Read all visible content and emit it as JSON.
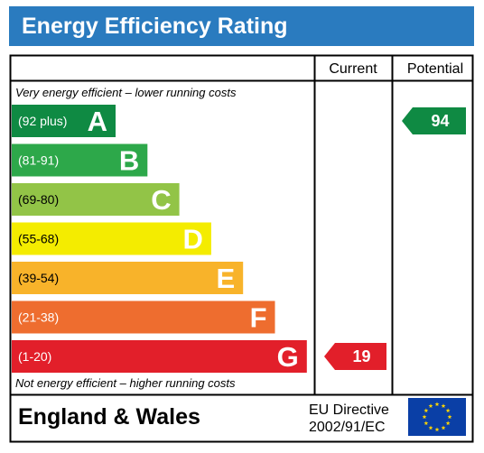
{
  "title": "Energy Efficiency Rating",
  "colors": {
    "title_bar": "#2a7bbf",
    "border": "#000000",
    "eu_flag": "#0a3fa6",
    "eu_stars": "#ffd500"
  },
  "chart_data": {
    "type": "bar",
    "title": "Energy Efficiency Rating",
    "top_note": "Very energy efficient – lower running costs",
    "bottom_note": "Not energy efficient – higher running costs",
    "columns": [
      "Current",
      "Potential"
    ],
    "bands": [
      {
        "letter": "A",
        "range": "(92 plus)",
        "min": 92,
        "max": 100,
        "color": "#0f8a43"
      },
      {
        "letter": "B",
        "range": "(81-91)",
        "min": 81,
        "max": 91,
        "color": "#2da84a"
      },
      {
        "letter": "C",
        "range": "(69-80)",
        "min": 69,
        "max": 80,
        "color": "#92c447"
      },
      {
        "letter": "D",
        "range": "(55-68)",
        "min": 55,
        "max": 68,
        "color": "#f4ec00"
      },
      {
        "letter": "E",
        "range": "(39-54)",
        "min": 39,
        "max": 54,
        "color": "#f8b32a"
      },
      {
        "letter": "F",
        "range": "(21-38)",
        "min": 21,
        "max": 38,
        "color": "#ee6d2f"
      },
      {
        "letter": "G",
        "range": "(1-20)",
        "min": 1,
        "max": 20,
        "color": "#e21f2a"
      }
    ],
    "current": {
      "value": 19,
      "band": "G",
      "color": "#e21f2a"
    },
    "potential": {
      "value": 94,
      "band": "A",
      "color": "#0f8a43"
    }
  },
  "footer": {
    "region": "England & Wales",
    "directive_line1": "EU Directive",
    "directive_line2": "2002/91/EC"
  }
}
